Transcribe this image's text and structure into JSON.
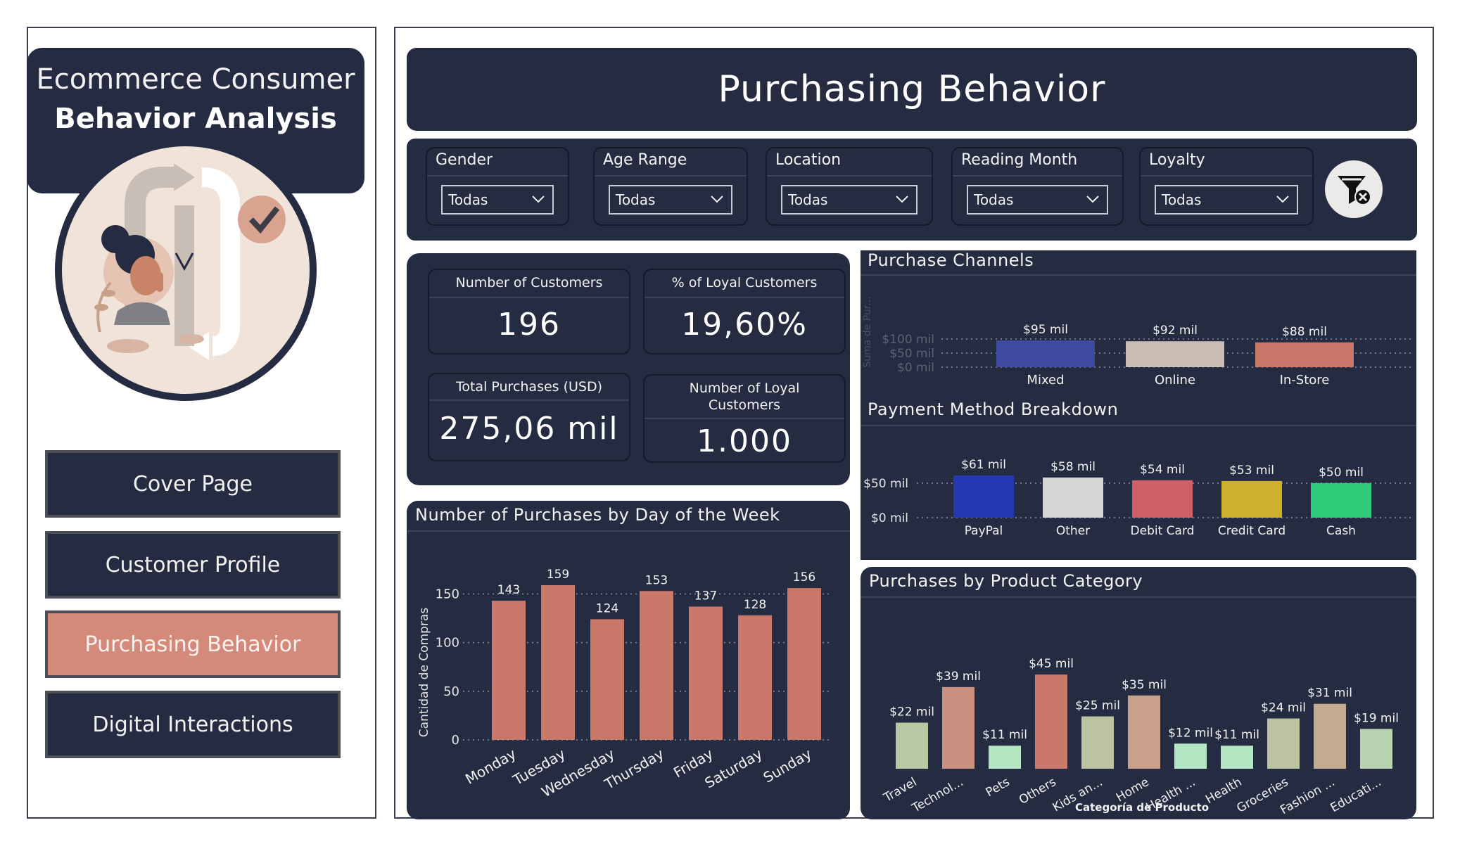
{
  "brand": {
    "line1": "Ecommerce Consumer",
    "line2": "Behavior Analysis"
  },
  "nav": {
    "items": [
      {
        "label": "Cover Page",
        "active": false
      },
      {
        "label": "Customer Profile",
        "active": false
      },
      {
        "label": "Purchasing Behavior",
        "active": true
      },
      {
        "label": "Digital Interactions",
        "active": false
      }
    ]
  },
  "header": {
    "title": "Purchasing Behavior"
  },
  "filters": {
    "gender": {
      "label": "Gender",
      "value": "Todas"
    },
    "age_range": {
      "label": "Age Range",
      "value": "Todas"
    },
    "location": {
      "label": "Location",
      "value": "Todas"
    },
    "reading_month": {
      "label": "Reading Month",
      "value": "Todas"
    },
    "loyalty": {
      "label": "Loyalty",
      "value": "Todas"
    },
    "clear_icon": "clear-filter-icon"
  },
  "kpis": {
    "customers": {
      "label": "Number of Customers",
      "value": "196"
    },
    "loyal_pct": {
      "label": "% of Loyal Customers",
      "value": "19,60%"
    },
    "total_purchases": {
      "label": "Total Purchases (USD)",
      "value": "275,06 mil"
    },
    "loyal_count": {
      "label_line1": "Number of Loyal",
      "label_line2": "Customers",
      "value": "1.000"
    }
  },
  "chart_data": [
    {
      "id": "channels",
      "type": "bar",
      "title": "Purchase Channels",
      "ylabel": "Suma de Pur...",
      "categories": [
        "Mixed",
        "Online",
        "In-Store"
      ],
      "values": [
        95,
        92,
        88
      ],
      "data_labels": [
        "$95 mil",
        "$92 mil",
        "$88 mil"
      ],
      "y_ticks": [
        "$0 mil",
        "$50 mil",
        "$100 mil"
      ],
      "y_tick_values": [
        0,
        50,
        100
      ],
      "ylim": [
        0,
        100
      ],
      "colors": [
        "#3d4aa0",
        "#c9bdb3",
        "#c9786a"
      ]
    },
    {
      "id": "payment",
      "type": "bar",
      "title": "Payment Method Breakdown",
      "categories": [
        "PayPal",
        "Other",
        "Debit Card",
        "Credit Card",
        "Cash"
      ],
      "values": [
        61,
        58,
        54,
        53,
        50
      ],
      "data_labels": [
        "$61 mil",
        "$58 mil",
        "$54 mil",
        "$53 mil",
        "$50 mil"
      ],
      "y_ticks": [
        "$0 mil",
        "$50 mil"
      ],
      "y_tick_values": [
        0,
        50
      ],
      "ylim": [
        0,
        61
      ],
      "colors": [
        "#2537b3",
        "#d6d6d6",
        "#cf6068",
        "#cfb02e",
        "#2ecc7a"
      ]
    },
    {
      "id": "weekday",
      "type": "bar",
      "title": "Number of Purchases by Day of the Week",
      "ylabel": "Cantidad de Compras",
      "categories": [
        "Monday",
        "Tuesday",
        "Wednesday",
        "Thursday",
        "Friday",
        "Saturday",
        "Sunday"
      ],
      "values": [
        143,
        159,
        124,
        153,
        137,
        128,
        156
      ],
      "data_labels": [
        "143",
        "159",
        "124",
        "153",
        "137",
        "128",
        "156"
      ],
      "y_ticks": [
        "0",
        "50",
        "100",
        "150"
      ],
      "y_tick_values": [
        0,
        50,
        100,
        150
      ],
      "ylim": [
        0,
        159
      ],
      "colors": [
        "#c9786a"
      ]
    },
    {
      "id": "category",
      "type": "bar",
      "title": "Purchases by Product Category",
      "xlabel": "Categoría de Producto",
      "categories": [
        "Travel",
        "Technol...",
        "Pets",
        "Others",
        "Kids an...",
        "Home",
        "Health ...",
        "Health",
        "Groceries",
        "Fashion ...",
        "Educati..."
      ],
      "values": [
        22,
        39,
        11,
        45,
        25,
        35,
        12,
        11,
        24,
        31,
        19
      ],
      "data_labels": [
        "$22 mil",
        "$39 mil",
        "$11 mil",
        "$45 mil",
        "$25 mil",
        "$35 mil",
        "$12 mil",
        "$11 mil",
        "$24 mil",
        "$31 mil",
        "$19 mil"
      ],
      "ylim": [
        0,
        45
      ],
      "colors": [
        "#b9c9a3",
        "#c9907f",
        "#b5e6c3",
        "#c9786a",
        "#bbc3a0",
        "#c9a08a",
        "#b5e6c3",
        "#b5e6c3",
        "#bbc3a0",
        "#c3ab92",
        "#b9d3b0"
      ]
    }
  ]
}
